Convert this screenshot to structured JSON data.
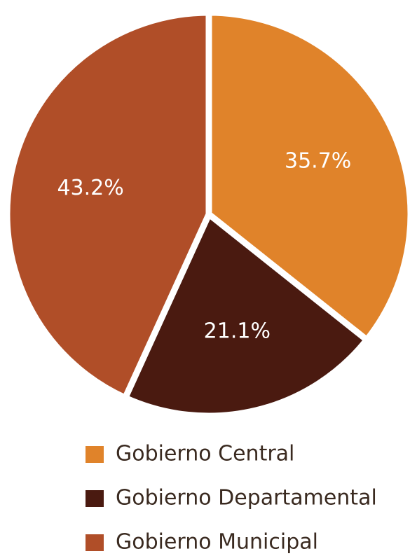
{
  "chart_data": {
    "type": "pie",
    "categories": [
      "Gobierno Central",
      "Gobierno Departamental",
      "Gobierno Municipal"
    ],
    "values": [
      35.7,
      21.1,
      43.2
    ],
    "value_labels": [
      "35.7%",
      "21.1%",
      "43.2%"
    ],
    "colors": [
      "#e0832a",
      "#4a1a10",
      "#b04e28"
    ]
  }
}
